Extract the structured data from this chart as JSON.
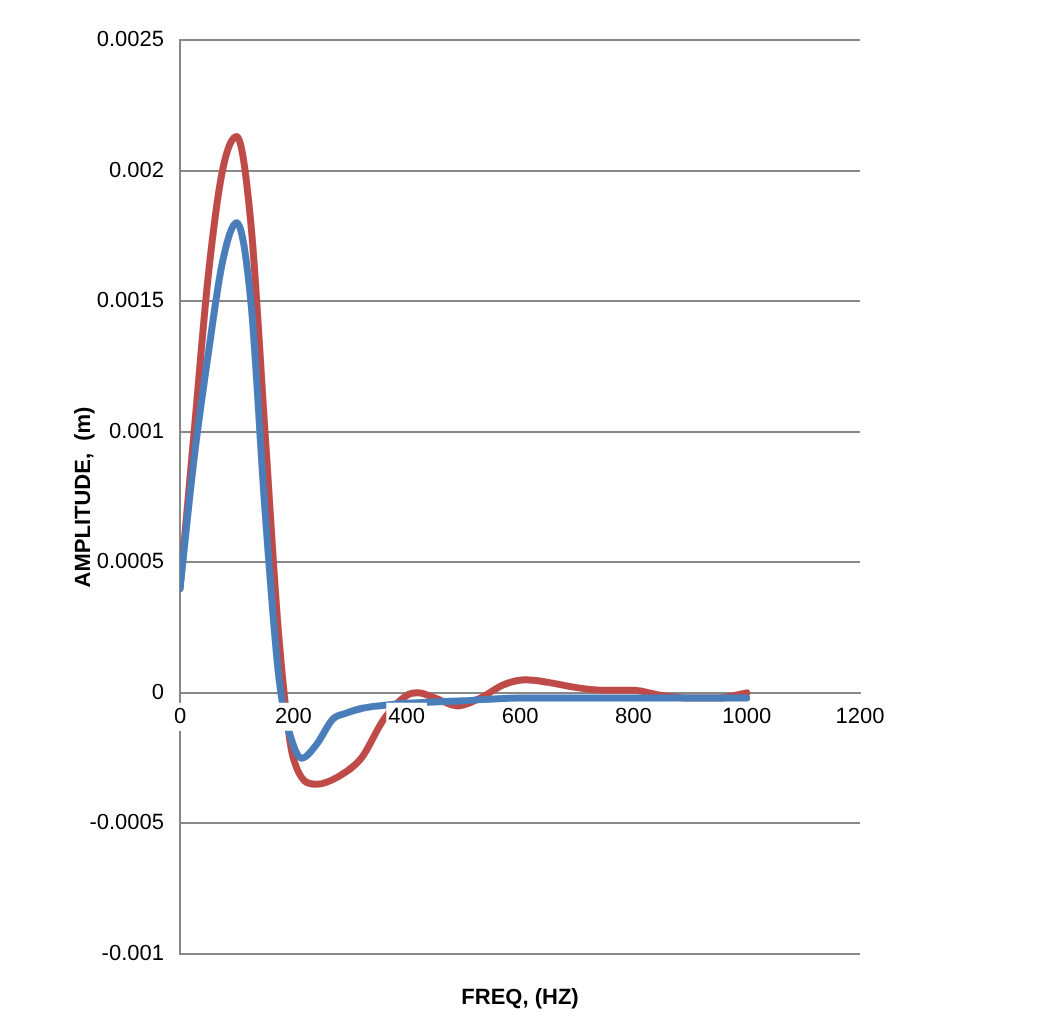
{
  "chart_data": {
    "type": "line",
    "xlabel": "FREQ, (HZ)",
    "ylabel": "AMPLITUDE,  (m)",
    "xlim": [
      0,
      1200
    ],
    "xticks": [
      0,
      200,
      400,
      600,
      800,
      1000,
      1200
    ],
    "ylim": [
      -0.001,
      0.0025
    ],
    "yticks": [
      -0.001,
      -0.0005,
      0,
      0.0005,
      0.001,
      0.0015,
      0.002,
      0.0025
    ],
    "grid": "y",
    "legend": false,
    "marker": "none",
    "series": [
      {
        "color": "#4a7ebb",
        "x": [
          0,
          25,
          50,
          75,
          100,
          125,
          150,
          175,
          200,
          215,
          240,
          270,
          290,
          320,
          350,
          400,
          500,
          600,
          700,
          800,
          900,
          1000
        ],
        "values": [
          0.0004,
          0.0009,
          0.0013,
          0.00165,
          0.0018,
          0.0015,
          0.0007,
          5e-05,
          -0.0002,
          -0.00025,
          -0.0002,
          -0.0001,
          -8e-05,
          -6e-05,
          -5e-05,
          -4e-05,
          -3e-05,
          -2e-05,
          -2e-05,
          -2e-05,
          -2e-05,
          -2e-05
        ]
      },
      {
        "color": "#be4b48",
        "x": [
          0,
          25,
          50,
          75,
          100,
          125,
          150,
          175,
          200,
          240,
          280,
          320,
          360,
          400,
          420,
          450,
          490,
          530,
          570,
          610,
          650,
          700,
          750,
          800,
          850,
          900,
          950,
          1000
        ],
        "values": [
          0.0004,
          0.001,
          0.0016,
          0.002,
          0.00213,
          0.0018,
          0.001,
          0.0002,
          -0.00025,
          -0.00035,
          -0.00032,
          -0.00025,
          -0.0001,
          -1e-05,
          0,
          -2e-05,
          -5e-05,
          -2e-05,
          3e-05,
          5e-05,
          4e-05,
          2e-05,
          1e-05,
          1e-05,
          -1e-05,
          -2e-05,
          -2e-05,
          0
        ]
      }
    ]
  }
}
